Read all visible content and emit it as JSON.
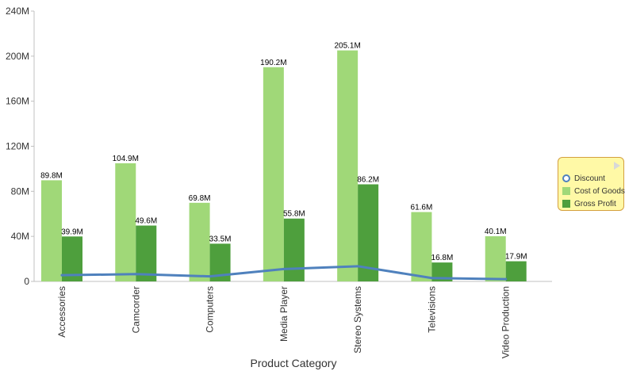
{
  "chart_data": {
    "type": "bar",
    "xlabel": "Product Category",
    "ylabel": "",
    "ylim": [
      0,
      240
    ],
    "ytick_values": [
      0,
      40,
      80,
      120,
      160,
      200,
      240
    ],
    "ytick_labels": [
      "0",
      "40M",
      "80M",
      "120M",
      "160M",
      "200M",
      "240M"
    ],
    "categories": [
      "Accessories",
      "Camcorder",
      "Computers",
      "Media Player",
      "Stereo Systems",
      "Televisions",
      "Video Production"
    ],
    "series": [
      {
        "name": "Cost of Goods",
        "kind": "bar",
        "color": "#a0d878",
        "values": [
          89.8,
          104.9,
          69.8,
          190.2,
          205.1,
          61.6,
          40.1
        ],
        "labels": [
          "89.8M",
          "104.9M",
          "69.8M",
          "190.2M",
          "205.1M",
          "61.6M",
          "40.1M"
        ]
      },
      {
        "name": "Gross Profit",
        "kind": "bar",
        "color": "#4e9f3d",
        "values": [
          39.9,
          49.6,
          33.5,
          55.8,
          86.2,
          16.8,
          17.9
        ],
        "labels": [
          "39.9M",
          "49.6M",
          "33.5M",
          "55.8M",
          "86.2M",
          "16.8M",
          "17.9M"
        ]
      },
      {
        "name": "Discount",
        "kind": "line",
        "color": "#4f81bd",
        "values": [
          5.5,
          6.5,
          4.5,
          11,
          13.5,
          3,
          2
        ]
      }
    ],
    "grid": false,
    "legend_position": "right"
  }
}
